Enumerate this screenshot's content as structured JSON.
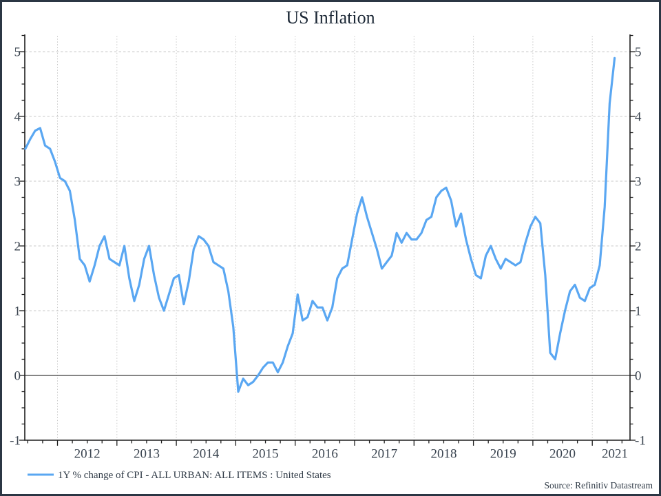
{
  "chart_data": {
    "type": "line",
    "title": "US Inflation",
    "xlabel": "",
    "ylabel": "",
    "ylim": [
      -1,
      5.27
    ],
    "y_ticks": [
      -1,
      0,
      1,
      2,
      3,
      4,
      5
    ],
    "y_minor_step": 0.25,
    "x_tick_labels": [
      "2012",
      "2013",
      "2014",
      "2015",
      "2016",
      "2017",
      "2018",
      "2019",
      "2020",
      "2021"
    ],
    "x_minor_step_years": 0.25,
    "grid": {
      "horizontal": "dashed",
      "vertical": "dotted",
      "zero_line": "solid"
    },
    "legend_position": "bottom-left",
    "source_note": "Source: Refinitiv Datastream",
    "series": [
      {
        "name": "1Y % change of CPI - ALL URBAN: ALL ITEMS : United States",
        "color": "#5aa7f2",
        "frequency": "monthly",
        "start_month": "2011-06",
        "end_month": "2021-05",
        "values": [
          3.5,
          3.65,
          3.78,
          3.82,
          3.55,
          3.5,
          3.3,
          3.05,
          3.0,
          2.85,
          2.4,
          1.8,
          1.7,
          1.45,
          1.7,
          2.0,
          2.15,
          1.8,
          1.75,
          1.7,
          2.0,
          1.5,
          1.15,
          1.4,
          1.8,
          2.0,
          1.55,
          1.2,
          1.0,
          1.25,
          1.5,
          1.55,
          1.1,
          1.45,
          1.95,
          2.15,
          2.1,
          2.0,
          1.75,
          1.7,
          1.65,
          1.3,
          0.75,
          -0.25,
          -0.05,
          -0.15,
          -0.1,
          0.0,
          0.12,
          0.2,
          0.2,
          0.05,
          0.2,
          0.45,
          0.65,
          1.25,
          0.85,
          0.9,
          1.15,
          1.05,
          1.05,
          0.85,
          1.05,
          1.5,
          1.65,
          1.7,
          2.1,
          2.5,
          2.75,
          2.45,
          2.2,
          1.95,
          1.65,
          1.75,
          1.85,
          2.2,
          2.05,
          2.2,
          2.1,
          2.1,
          2.2,
          2.4,
          2.45,
          2.75,
          2.85,
          2.9,
          2.7,
          2.3,
          2.5,
          2.1,
          1.8,
          1.55,
          1.5,
          1.85,
          2.0,
          1.8,
          1.65,
          1.8,
          1.75,
          1.7,
          1.75,
          2.05,
          2.3,
          2.45,
          2.35,
          1.55,
          0.35,
          0.25,
          0.65,
          1.0,
          1.3,
          1.4,
          1.2,
          1.15,
          1.35,
          1.4,
          1.7,
          2.6,
          4.2,
          4.9
        ]
      }
    ],
    "colors": {
      "line": "#5aa7f2",
      "grid": "#c9c9c9",
      "axis": "#1f1f1f",
      "zero_line": "#3c3c3c",
      "frame_border": "#2b3644",
      "text": "#39434f",
      "title_text": "#1c2836",
      "background": "#ffffff"
    }
  }
}
